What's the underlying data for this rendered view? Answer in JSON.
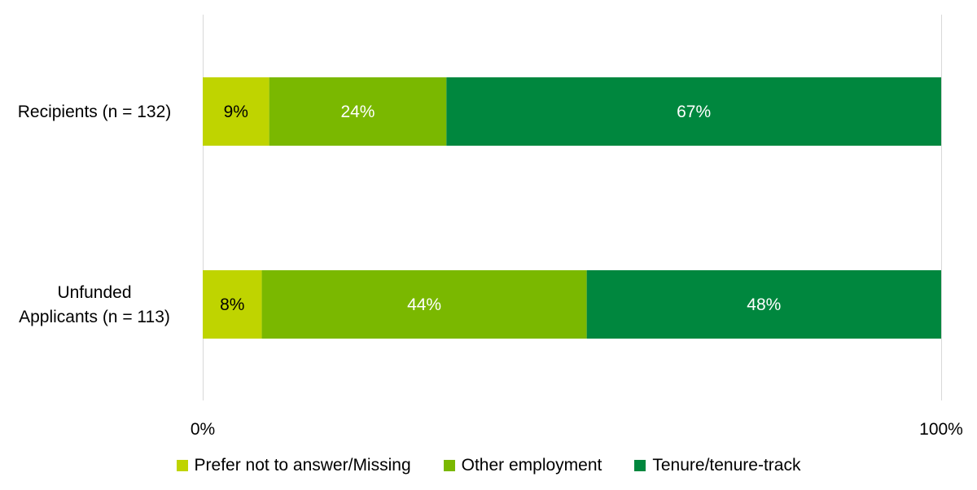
{
  "chart_data": {
    "type": "bar",
    "orientation": "horizontal",
    "stacked": true,
    "categories": [
      "Recipients (n = 132)",
      "Unfunded Applicants (n = 113)"
    ],
    "series": [
      {
        "name": "Prefer not to answer/Missing",
        "values": [
          9,
          8
        ],
        "labels": [
          "9%",
          "8%"
        ],
        "color": "#BFD400",
        "label_color": "#000000"
      },
      {
        "name": "Other employment",
        "values": [
          24,
          44
        ],
        "labels": [
          "24%",
          "44%"
        ],
        "color": "#7AB800",
        "label_color": "#ffffff"
      },
      {
        "name": "Tenure/tenure-track",
        "values": [
          67,
          48
        ],
        "labels": [
          "67%",
          "48%"
        ],
        "color": "#00873E",
        "label_color": "#ffffff"
      }
    ],
    "xlim": [
      0,
      100
    ],
    "x_ticks": [
      0,
      100
    ],
    "x_tick_labels": [
      "0%",
      "100%"
    ],
    "grid": true,
    "grid_color": "#d9d9d9",
    "legend_position": "bottom"
  }
}
